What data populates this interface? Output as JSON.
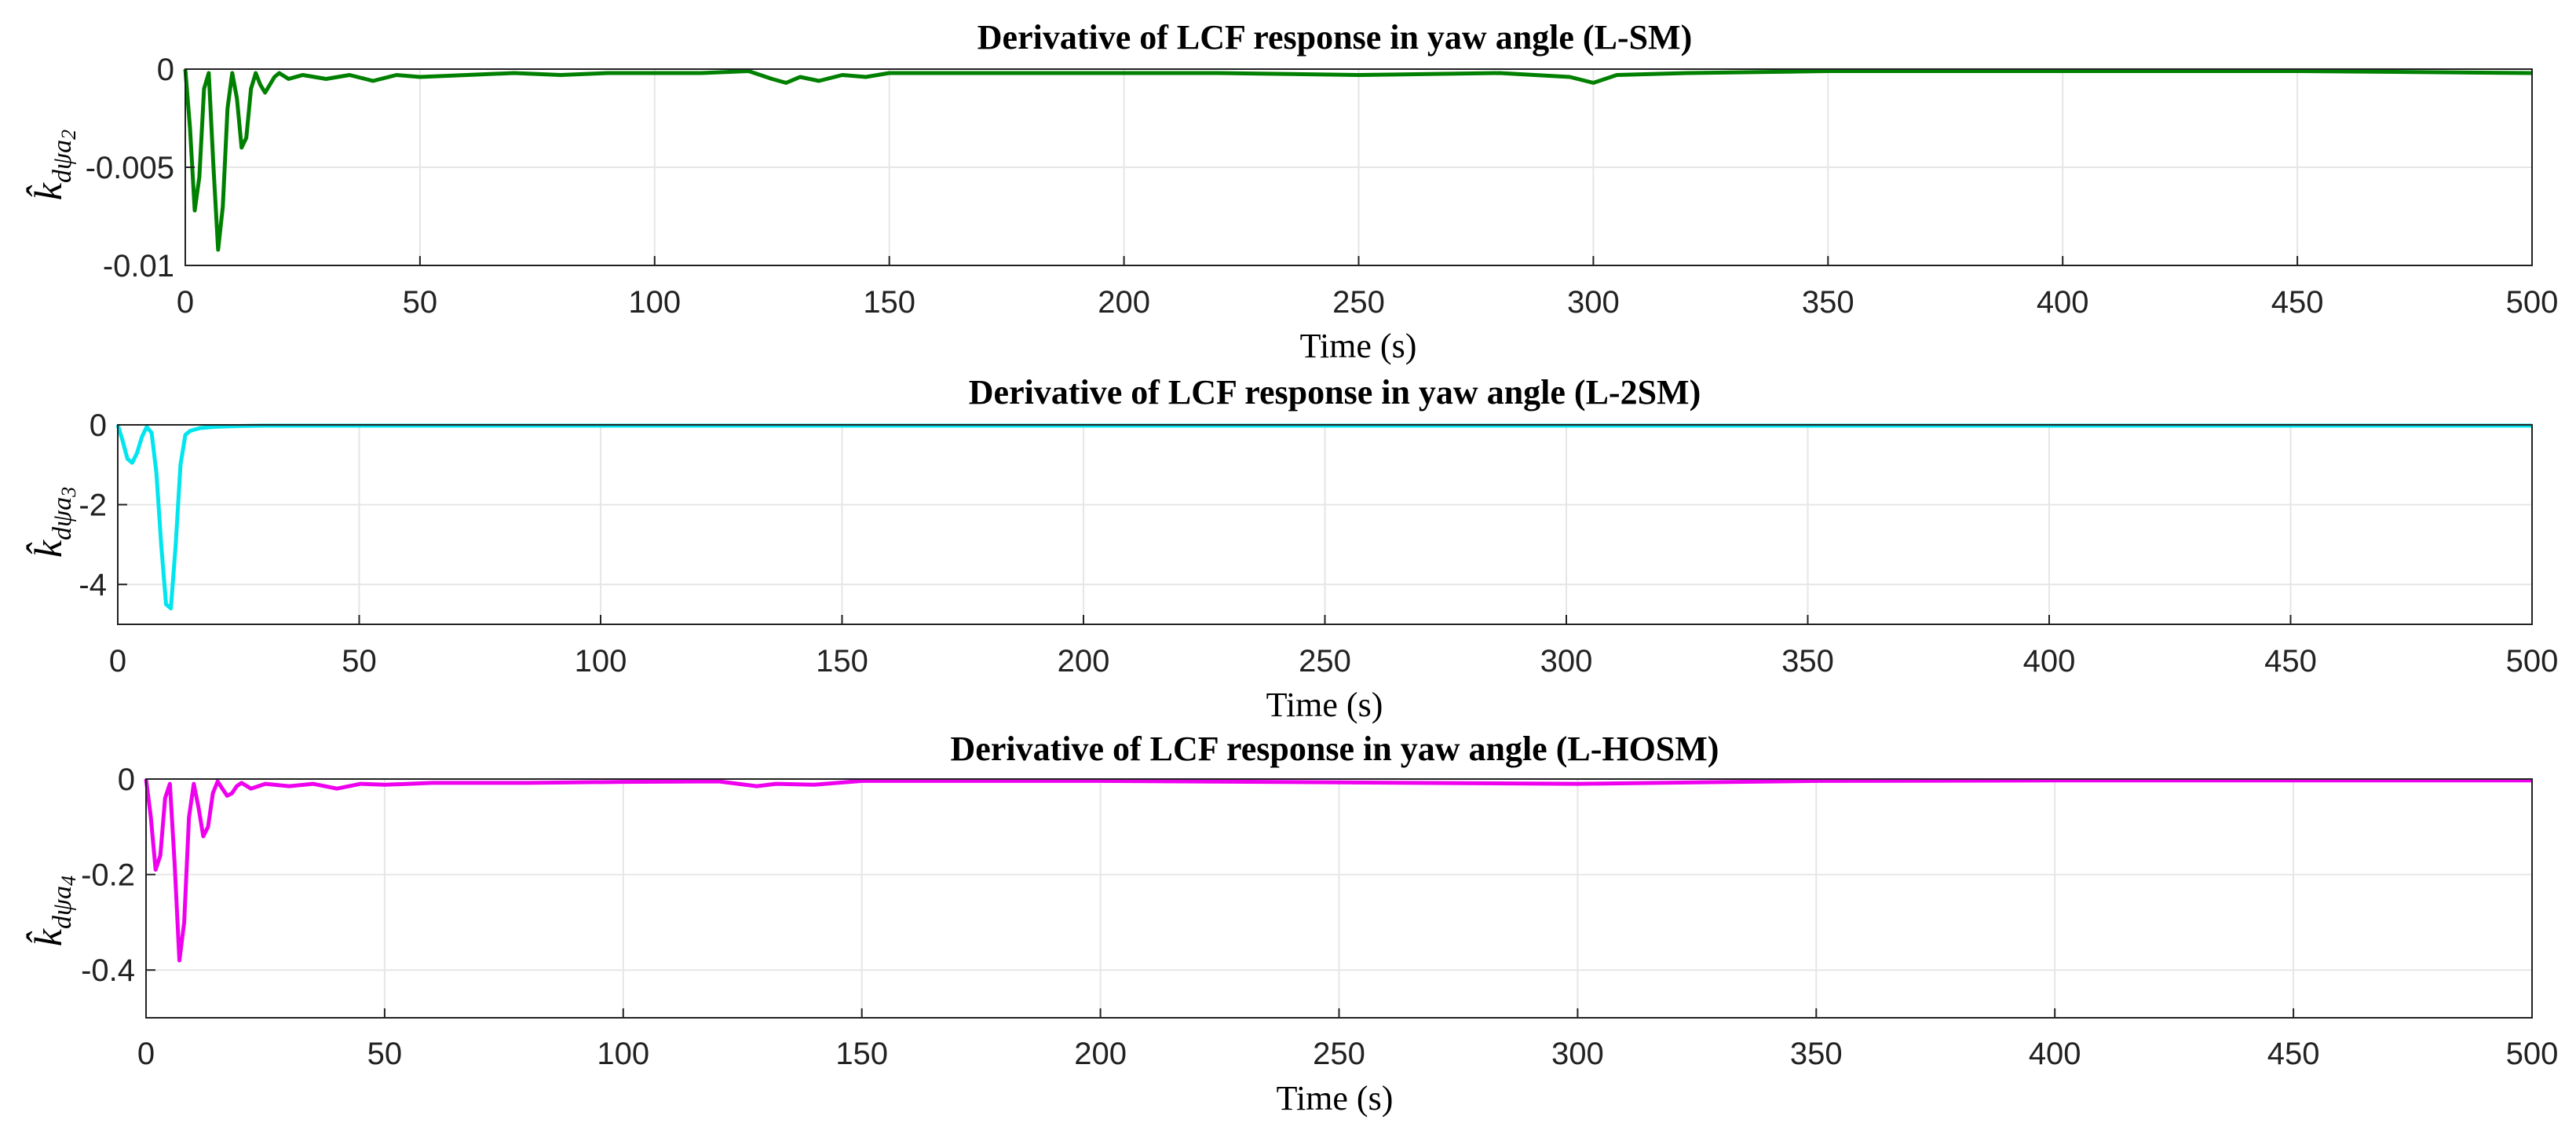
{
  "chart_data": [
    {
      "type": "line",
      "title": "Derivative of LCF response in yaw angle (L-SM)",
      "xlabel": "Time (s)",
      "ylabel": {
        "base": "k̂",
        "sub": "dψa",
        "subsub": "2"
      },
      "xlim": [
        0,
        500
      ],
      "ylim": [
        -0.01,
        0
      ],
      "xticks": [
        0,
        50,
        100,
        150,
        200,
        250,
        300,
        350,
        400,
        450,
        500
      ],
      "yticks": [
        0,
        -0.005,
        -0.01
      ],
      "ytick_labels": [
        "0",
        "-0.005",
        "-0.01"
      ],
      "grid": true,
      "color": "#008000",
      "series": [
        {
          "x": [
            0,
            1,
            2,
            3,
            4,
            5,
            6,
            7,
            8,
            9,
            10,
            11,
            12,
            13,
            14,
            15,
            16,
            17,
            18,
            19,
            20,
            22,
            25,
            30,
            35,
            40,
            45,
            50,
            60,
            70,
            80,
            90,
            100,
            110,
            120,
            125,
            128,
            131,
            135,
            140,
            145,
            150,
            160,
            180,
            200,
            220,
            250,
            280,
            295,
            300,
            305,
            320,
            350,
            400,
            450,
            500
          ],
          "y": [
            0,
            -0.003,
            -0.0072,
            -0.0055,
            -0.001,
            -0.0002,
            -0.005,
            -0.0092,
            -0.007,
            -0.002,
            -0.0002,
            -0.0015,
            -0.004,
            -0.0035,
            -0.001,
            -0.0002,
            -0.0008,
            -0.0012,
            -0.0008,
            -0.0004,
            -0.0002,
            -0.0005,
            -0.0003,
            -0.0005,
            -0.0003,
            -0.0006,
            -0.0003,
            -0.0004,
            -0.0003,
            -0.0002,
            -0.0003,
            -0.0002,
            -0.0002,
            -0.0002,
            -0.0001,
            -0.0005,
            -0.0007,
            -0.0004,
            -0.0006,
            -0.0003,
            -0.0004,
            -0.0002,
            -0.0002,
            -0.0002,
            -0.0002,
            -0.0002,
            -0.0003,
            -0.0002,
            -0.0004,
            -0.0007,
            -0.0003,
            -0.0002,
            -0.0001,
            -0.0001,
            -0.0001,
            -0.0002
          ]
        }
      ]
    },
    {
      "type": "line",
      "title": "Derivative of LCF response in yaw angle (L-2SM)",
      "xlabel": "Time (s)",
      "ylabel": {
        "base": "k̂",
        "sub": "dψa",
        "subsub": "3"
      },
      "xlim": [
        0,
        500
      ],
      "ylim": [
        -5,
        0
      ],
      "xticks": [
        0,
        50,
        100,
        150,
        200,
        250,
        300,
        350,
        400,
        450,
        500
      ],
      "yticks": [
        0,
        -2,
        -4
      ],
      "ytick_labels": [
        "0",
        "-2",
        "-4"
      ],
      "grid": true,
      "color": "#00e5ee",
      "series": [
        {
          "x": [
            0,
            1,
            2,
            3,
            4,
            5,
            6,
            7,
            8,
            9,
            10,
            11,
            12,
            13,
            14,
            15,
            17,
            20,
            25,
            30,
            50,
            100,
            500
          ],
          "y": [
            0,
            -0.4,
            -0.85,
            -0.95,
            -0.7,
            -0.3,
            -0.05,
            -0.2,
            -1.2,
            -3.0,
            -4.5,
            -4.6,
            -3.0,
            -1.0,
            -0.25,
            -0.15,
            -0.08,
            -0.05,
            -0.03,
            -0.02,
            -0.02,
            -0.02,
            -0.02
          ]
        }
      ]
    },
    {
      "type": "line",
      "title": "Derivative of LCF response in yaw angle (L-HOSM)",
      "xlabel": "Time (s)",
      "ylabel": {
        "base": "k̂",
        "sub": "dψa",
        "subsub": "4"
      },
      "xlim": [
        0,
        500
      ],
      "ylim": [
        -0.5,
        0
      ],
      "xticks": [
        0,
        50,
        100,
        150,
        200,
        250,
        300,
        350,
        400,
        450,
        500
      ],
      "yticks": [
        0,
        -0.2,
        -0.4
      ],
      "ytick_labels": [
        "0",
        "-0.2",
        "-0.4"
      ],
      "grid": true,
      "color": "#ee00ee",
      "series": [
        {
          "x": [
            0,
            1,
            2,
            3,
            4,
            5,
            6,
            7,
            8,
            9,
            10,
            11,
            12,
            13,
            14,
            15,
            16,
            17,
            18,
            19,
            20,
            22,
            25,
            30,
            35,
            40,
            45,
            50,
            60,
            80,
            100,
            120,
            128,
            132,
            140,
            150,
            200,
            300,
            350,
            400,
            500
          ],
          "y": [
            0,
            -0.08,
            -0.19,
            -0.16,
            -0.04,
            -0.01,
            -0.18,
            -0.38,
            -0.3,
            -0.08,
            -0.01,
            -0.06,
            -0.12,
            -0.1,
            -0.03,
            -0.005,
            -0.02,
            -0.035,
            -0.03,
            -0.015,
            -0.008,
            -0.02,
            -0.01,
            -0.015,
            -0.01,
            -0.02,
            -0.01,
            -0.012,
            -0.008,
            -0.008,
            -0.006,
            -0.005,
            -0.015,
            -0.01,
            -0.012,
            -0.004,
            -0.004,
            -0.01,
            -0.004,
            -0.003,
            -0.003
          ]
        }
      ]
    }
  ]
}
